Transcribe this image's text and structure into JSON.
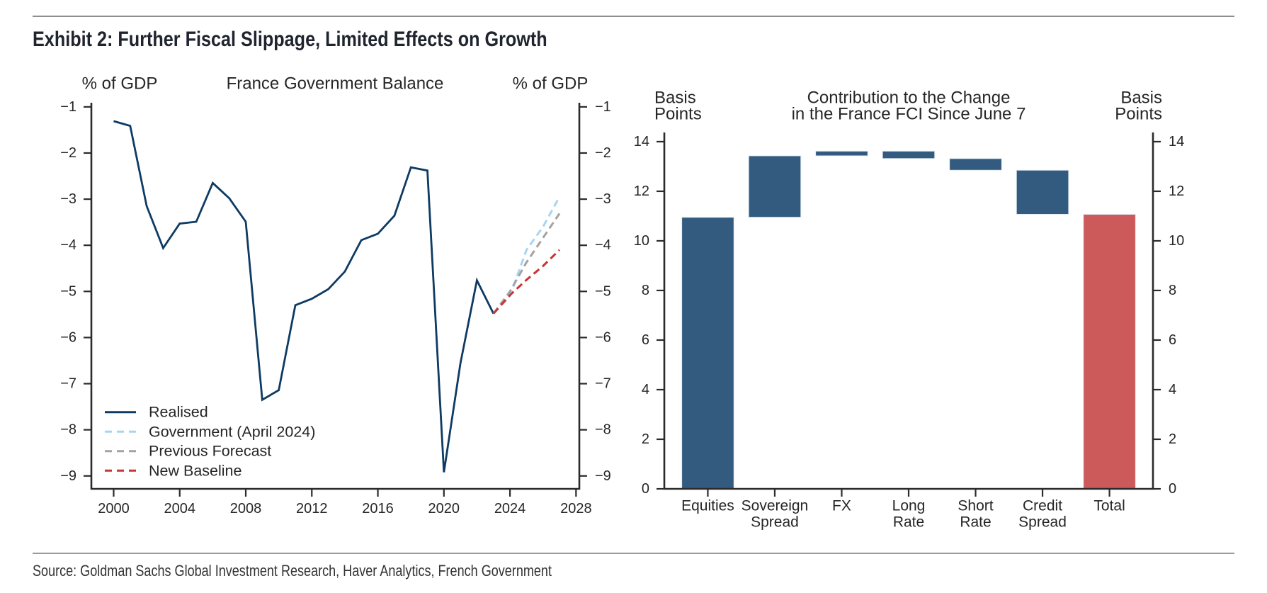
{
  "header": {
    "title": "Exhibit 2: Further Fiscal Slippage, Limited Effects on Growth"
  },
  "footer": {
    "source": "Source: Goldman Sachs Global Investment Research, Haver Analytics, French Government"
  },
  "chart_data": [
    {
      "type": "line",
      "title": "France Government Balance",
      "ylabel_left": "% of GDP",
      "ylabel_right": "% of GDP",
      "xlabel": "",
      "xlim": [
        1998.65,
        2028.2
      ],
      "ylim": [
        -9.28,
        -0.91
      ],
      "xticks": [
        2000,
        2004,
        2008,
        2012,
        2016,
        2020,
        2024,
        2028
      ],
      "xtick_labels": [
        "2000",
        "2004",
        "2008",
        "2012",
        "2016",
        "2020",
        "2024",
        "2028"
      ],
      "yticks": [
        -1,
        -2,
        -3,
        -4,
        -5,
        -6,
        -7,
        -8,
        -9
      ],
      "ytick_labels": [
        "−1",
        "−2",
        "−3",
        "−4",
        "−5",
        "−6",
        "−7",
        "−8",
        "−9"
      ],
      "grid": false,
      "legend_position": "bottom-left",
      "series": [
        {
          "name": "Realised",
          "style": "solid",
          "color": "#0e3b63",
          "x": [
            2000,
            2001,
            2002,
            2003,
            2004,
            2005,
            2006,
            2007,
            2008,
            2009,
            2010,
            2011,
            2012,
            2013,
            2014,
            2015,
            2016,
            2017,
            2018,
            2019,
            2020,
            2021,
            2022,
            2023
          ],
          "values": [
            -1.31,
            -1.41,
            -3.15,
            -4.06,
            -3.53,
            -3.49,
            -2.65,
            -2.98,
            -3.49,
            -7.35,
            -7.14,
            -5.3,
            -5.16,
            -4.95,
            -4.57,
            -3.89,
            -3.75,
            -3.36,
            -2.31,
            -2.38,
            -8.92,
            -6.56,
            -4.76,
            -5.48
          ]
        },
        {
          "name": "Government (April 2024)",
          "style": "dashed",
          "color": "#a8d4f2",
          "x": [
            2023,
            2024,
            2025,
            2026,
            2027
          ],
          "values": [
            -5.48,
            -5.1,
            -4.1,
            -3.6,
            -2.95
          ]
        },
        {
          "name": "Previous Forecast",
          "style": "dashed",
          "color": "#a3a3a3",
          "x": [
            2023,
            2024,
            2025,
            2026,
            2027
          ],
          "values": [
            -5.48,
            -5.0,
            -4.37,
            -3.84,
            -3.31
          ]
        },
        {
          "name": "New Baseline",
          "style": "dashed",
          "color": "#cc3333",
          "x": [
            2023,
            2024,
            2025,
            2026,
            2027
          ],
          "values": [
            -5.48,
            -5.08,
            -4.75,
            -4.45,
            -4.1
          ]
        }
      ]
    },
    {
      "type": "bar",
      "subtype": "waterfall",
      "title_lines": [
        "Contribution to the Change",
        "in the France FCI Since June 7"
      ],
      "ylabel_left": [
        "Basis",
        "Points"
      ],
      "ylabel_right": [
        "Basis",
        "Points"
      ],
      "xlabel": "",
      "categories": [
        "Equities",
        "Sovereign Spread",
        "FX",
        "Long Rate",
        "Short Rate",
        "Credit Spread",
        "Total"
      ],
      "category_label_lines": [
        [
          "Equities"
        ],
        [
          "Sovereign",
          "Spread"
        ],
        [
          "FX"
        ],
        [
          "Long",
          "Rate"
        ],
        [
          "Short",
          "Rate"
        ],
        [
          "Credit",
          "Spread"
        ],
        [
          "Total"
        ]
      ],
      "values": [
        10.95,
        2.48,
        0.19,
        -0.3,
        -0.47,
        -1.78,
        11.07
      ],
      "total_category": "Total",
      "xlim": [
        -0.65,
        6.65
      ],
      "ylim": [
        0,
        14.37
      ],
      "yticks": [
        0,
        2,
        4,
        6,
        8,
        10,
        12,
        14
      ],
      "ytick_labels": [
        "0",
        "2",
        "4",
        "6",
        "8",
        "10",
        "12",
        "14"
      ],
      "grid": false,
      "colors": {
        "contribution": "#335b7f",
        "total": "#cc5a5a"
      }
    }
  ]
}
